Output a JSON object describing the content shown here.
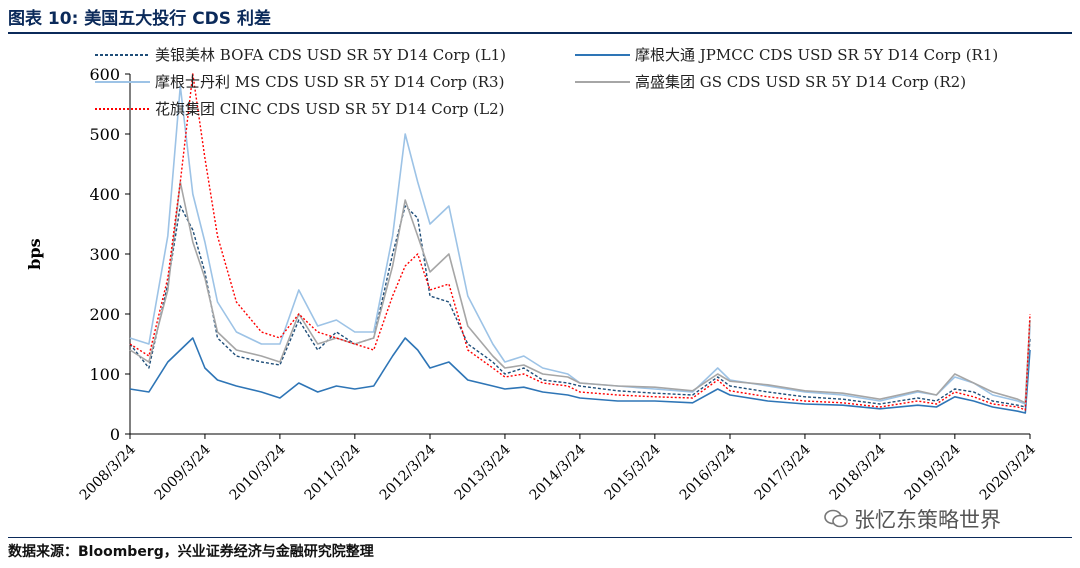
{
  "title": "图表 10:  美国五大投行 CDS 利差",
  "source": "数据来源：Bloomberg，兴业证券经济与金融研究院整理",
  "watermark": "张忆东策略世界",
  "chart_data": {
    "type": "line",
    "title": "图表 10:  美国五大投行 CDS 利差",
    "xlabel": "",
    "ylabel": "bps",
    "ylim": [
      0,
      600
    ],
    "yticks": [
      0,
      100,
      200,
      300,
      400,
      500,
      600
    ],
    "xticks": [
      "2008/3/24",
      "2009/3/24",
      "2010/3/24",
      "2011/3/24",
      "2012/3/24",
      "2013/3/24",
      "2014/3/24",
      "2015/3/24",
      "2016/3/24",
      "2017/3/24",
      "2018/3/24",
      "2019/3/24",
      "2020/3/24"
    ],
    "grid": false,
    "legend_position": "top",
    "x": [
      "2008/3/24",
      "2008/6/24",
      "2008/9/24",
      "2008/11/24",
      "2009/1/24",
      "2009/3/24",
      "2009/5/24",
      "2009/8/24",
      "2009/12/24",
      "2010/3/24",
      "2010/6/24",
      "2010/9/24",
      "2010/12/24",
      "2011/3/24",
      "2011/6/24",
      "2011/9/24",
      "2011/11/24",
      "2012/1/24",
      "2012/3/24",
      "2012/6/24",
      "2012/9/24",
      "2013/1/24",
      "2013/3/24",
      "2013/6/24",
      "2013/9/24",
      "2014/1/24",
      "2014/3/24",
      "2014/9/24",
      "2015/3/24",
      "2015/9/24",
      "2016/1/24",
      "2016/3/24",
      "2016/9/24",
      "2017/3/24",
      "2017/9/24",
      "2018/3/24",
      "2018/9/24",
      "2018/12/24",
      "2019/3/24",
      "2019/6/24",
      "2019/9/24",
      "2020/1/24",
      "2020/3/1",
      "2020/3/24"
    ],
    "series": [
      {
        "name": "美银美林 BOFA CDS USD SR 5Y D14 Corp  (L1)",
        "color": "#1f4e79",
        "dash": "3,2",
        "width": 1.4,
        "values": [
          150,
          110,
          250,
          380,
          340,
          270,
          160,
          130,
          120,
          115,
          190,
          140,
          170,
          150,
          160,
          300,
          380,
          360,
          230,
          220,
          150,
          120,
          100,
          110,
          90,
          85,
          80,
          72,
          68,
          65,
          95,
          80,
          70,
          62,
          58,
          50,
          60,
          55,
          75,
          70,
          55,
          48,
          45,
          160
        ]
      },
      {
        "name": "摩根大通 JPMCC CDS USD SR 5Y D14 Corp  (R1)",
        "color": "#2e75b6",
        "dash": "",
        "width": 1.6,
        "values": [
          75,
          70,
          120,
          140,
          160,
          110,
          90,
          80,
          70,
          60,
          85,
          70,
          80,
          75,
          80,
          130,
          160,
          140,
          110,
          120,
          90,
          80,
          75,
          78,
          70,
          65,
          60,
          55,
          55,
          52,
          75,
          65,
          55,
          50,
          48,
          42,
          48,
          45,
          62,
          55,
          45,
          38,
          35,
          140
        ]
      },
      {
        "name": "摩根士丹利 MS CDS USD SR 5Y D14 Corp  (R3)",
        "color": "#9dc3e6",
        "dash": "",
        "width": 1.6,
        "values": [
          160,
          150,
          330,
          580,
          400,
          320,
          220,
          170,
          150,
          150,
          240,
          180,
          190,
          170,
          170,
          330,
          500,
          420,
          350,
          380,
          230,
          150,
          120,
          130,
          110,
          100,
          85,
          80,
          75,
          70,
          110,
          90,
          80,
          70,
          65,
          55,
          70,
          65,
          95,
          85,
          65,
          55,
          50,
          180
        ]
      },
      {
        "name": "高盛集团 GS CDS USD SR 5Y D14 Corp  (R2)",
        "color": "#a6a6a6",
        "dash": "",
        "width": 1.6,
        "values": [
          140,
          120,
          240,
          420,
          320,
          260,
          170,
          140,
          130,
          120,
          200,
          150,
          160,
          150,
          160,
          280,
          390,
          330,
          270,
          300,
          180,
          130,
          110,
          115,
          100,
          95,
          85,
          80,
          78,
          72,
          100,
          88,
          82,
          72,
          68,
          58,
          72,
          65,
          100,
          85,
          70,
          58,
          52,
          190
        ]
      },
      {
        "name": "花旗集团 CINC CDS USD SR 5Y D14 Corp  (L2)",
        "color": "#ff0000",
        "dash": "2,2",
        "width": 1.4,
        "values": [
          150,
          130,
          260,
          420,
          600,
          460,
          330,
          220,
          170,
          160,
          200,
          170,
          160,
          150,
          140,
          230,
          280,
          300,
          240,
          250,
          140,
          110,
          95,
          100,
          85,
          80,
          70,
          65,
          62,
          60,
          90,
          72,
          62,
          55,
          52,
          45,
          55,
          50,
          70,
          62,
          50,
          45,
          40,
          200
        ]
      }
    ]
  }
}
